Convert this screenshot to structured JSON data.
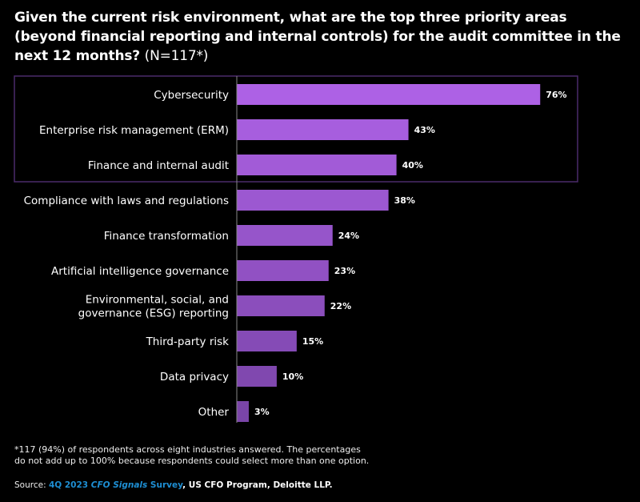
{
  "title": {
    "main": "Given the current risk environment, what are the top three priority areas (beyond financial reporting and internal controls) for the audit committee in the next 12 months?",
    "n": "(N=117*)"
  },
  "chart_data": {
    "type": "bar",
    "orientation": "horizontal",
    "categories": [
      "Cybersecurity",
      "Enterprise risk management (ERM)",
      "Finance and internal audit",
      "Compliance with laws and regulations",
      "Finance transformation",
      "Artificial intelligence governance",
      "Environmental, social, and|governance (ESG) reporting",
      "Third-party risk",
      "Data privacy",
      "Other"
    ],
    "values": [
      76,
      43,
      40,
      38,
      24,
      23,
      22,
      15,
      10,
      3
    ],
    "labels": [
      "76%",
      "43%",
      "40%",
      "38%",
      "24%",
      "23%",
      "22%",
      "15%",
      "10%",
      "3%"
    ],
    "unit": "%",
    "highlighted_top": 3,
    "colors": {
      "top": "#ad61e5",
      "bottom": "#7a45a8",
      "highlight_box": "#4b2b6b",
      "axis": "#888888"
    },
    "grid": false
  },
  "footnote": {
    "line1": "*117 (94%) of respondents across eight industries answered. The percentages",
    "line2": "do not add up to 100% because respondents could select more than one option."
  },
  "source": {
    "prefix": "Source: ",
    "link_a": "4Q 2023 ",
    "link_italic": "CFO Signals",
    "link_b": " Survey",
    "suffix": ", US CFO Program, Deloitte LLP."
  }
}
